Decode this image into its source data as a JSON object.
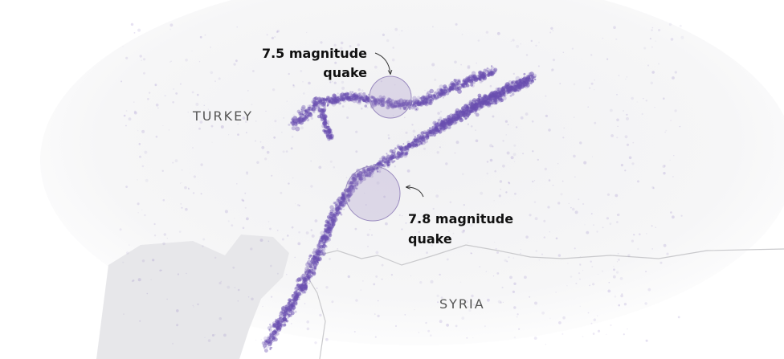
{
  "map": {
    "countries": [
      "TURKEY",
      "SYRIA"
    ],
    "annotations": [
      {
        "lines": [
          "7.5 magnitude",
          "quake"
        ]
      },
      {
        "lines": [
          "7.8 magnitude",
          "quake"
        ]
      }
    ]
  }
}
